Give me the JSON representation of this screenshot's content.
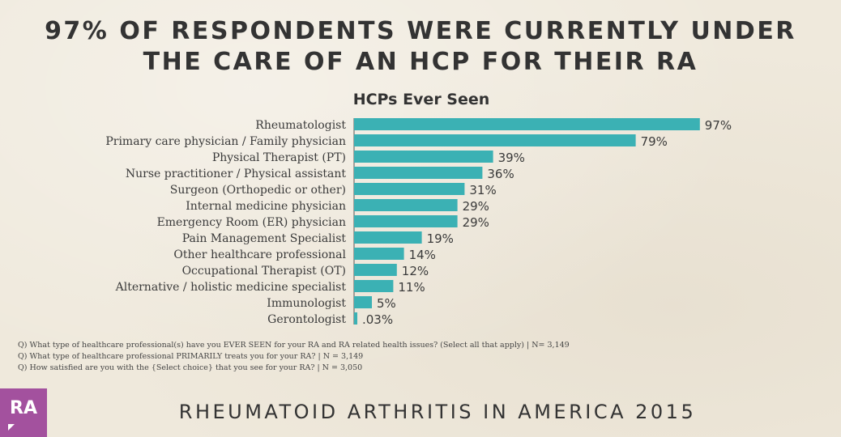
{
  "headline": {
    "line1": "97% OF RESPONDENTS WERE CURRENTLY UNDER",
    "line2": "THE CARE OF AN HCP FOR THEIR RA"
  },
  "chart_data": {
    "type": "bar",
    "orientation": "horizontal",
    "title": "HCPs Ever Seen",
    "xlabel": "",
    "ylabel": "",
    "xlim": [
      0,
      100
    ],
    "grid": false,
    "bar_color": "#3bb1b4",
    "categories": [
      "Rheumatologist",
      "Primary care physician / Family physician",
      "Physical Therapist (PT)",
      "Nurse practitioner / Physical assistant",
      "Surgeon (Orthopedic or other)",
      "Internal medicine physician",
      "Emergency Room (ER) physician",
      "Pain Management Specialist",
      "Other healthcare professional",
      "Occupational Therapist (OT)",
      "Alternative / holistic medicine specialist",
      "Immunologist",
      "Gerontologist"
    ],
    "values": [
      97,
      79,
      39,
      36,
      31,
      29,
      29,
      19,
      14,
      12,
      11,
      5,
      0.03
    ],
    "value_labels": [
      "97%",
      "79%",
      "39%",
      "36%",
      "31%",
      "29%",
      "29%",
      "19%",
      "14%",
      "12%",
      "11%",
      "5%",
      ".03%"
    ]
  },
  "notes": [
    "Q) What type of healthcare professional(s) have you EVER SEEN for your RA and RA related health issues? (Select all that apply) | N= 3,149",
    "Q) What type of healthcare professional PRIMARILY treats you for your RA? | N = 3,149",
    "Q) How satisfied are you with the {Select choice} that you see for your RA? | N = 3,050"
  ],
  "logo": {
    "text": "RA",
    "color": "#a3519e",
    "icon": "speech-bubble-icon"
  },
  "footer": {
    "text": "RHEUMATOID ARTHRITIS IN AMERICA 2015"
  }
}
